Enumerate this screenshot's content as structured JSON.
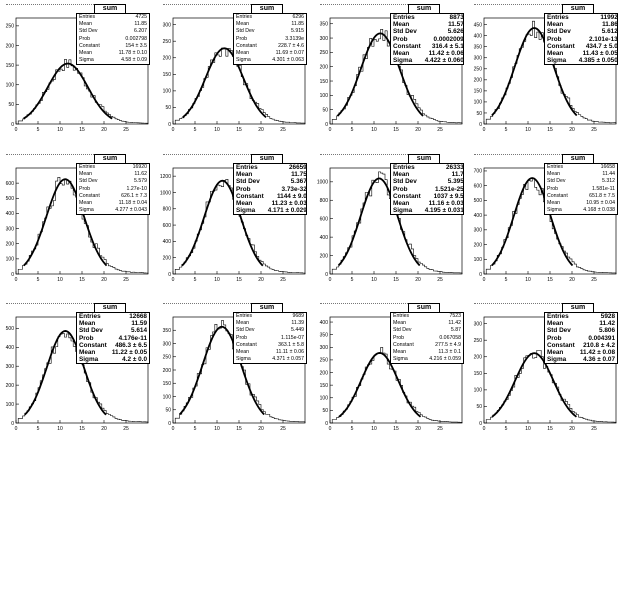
{
  "chart_data": [
    {
      "type": "histogram",
      "name": "sum",
      "xlim": [
        0,
        30
      ],
      "ylim": [
        0,
        270
      ],
      "yticks": [
        0,
        50,
        100,
        150,
        200,
        250
      ],
      "xticks": [
        0,
        5,
        10,
        15,
        20,
        25
      ],
      "stats": [
        {
          "k": "Entries",
          "v": "4725"
        },
        {
          "k": "Mean",
          "v": "11.85"
        },
        {
          "k": "Std Dev",
          "v": "6.207"
        },
        {
          "k": "Prob",
          "v": "0.002798"
        },
        {
          "k": "Constant",
          "v": "154 ± 3.5"
        },
        {
          "k": "Mean",
          "v": "11.78 ± 0.10"
        },
        {
          "k": "Sigma",
          "v": "4.58 ± 0.09"
        }
      ],
      "fit": {
        "constant": 154,
        "mean": 11.78,
        "sigma": 4.58
      }
    },
    {
      "type": "histogram",
      "name": "sum",
      "xlim": [
        0,
        30
      ],
      "ylim": [
        0,
        320
      ],
      "yticks": [
        0,
        50,
        100,
        150,
        200,
        250,
        300
      ],
      "xticks": [
        0,
        5,
        10,
        15,
        20,
        25
      ],
      "stats": [
        {
          "k": "Entries",
          "v": "6296"
        },
        {
          "k": "Mean",
          "v": "11.85"
        },
        {
          "k": "Std Dev",
          "v": "5.915"
        },
        {
          "k": "Prob",
          "v": "3.3139e"
        },
        {
          "k": "Constant",
          "v": "228.7 ± 4.6"
        },
        {
          "k": "Mean",
          "v": "11.69 ± 0.07"
        },
        {
          "k": "Sigma",
          "v": "4.301 ± 0.063"
        }
      ],
      "fit": {
        "constant": 228.7,
        "mean": 11.69,
        "sigma": 4.301
      }
    },
    {
      "type": "histogram",
      "name": "sum",
      "xlim": [
        0,
        30
      ],
      "ylim": [
        0,
        370
      ],
      "yticks": [
        0,
        50,
        100,
        150,
        200,
        250,
        300,
        350
      ],
      "xticks": [
        0,
        5,
        10,
        15,
        20,
        25
      ],
      "stats": [
        {
          "k": "Entries",
          "v": "8873"
        },
        {
          "k": "Mean",
          "v": "11.57"
        },
        {
          "k": "Std Dev",
          "v": "5.626"
        },
        {
          "k": "Prob",
          "v": "0.0002009"
        },
        {
          "k": "Constant",
          "v": "316.4 ± 5.1"
        },
        {
          "k": "Mean",
          "v": "11.42 ± 0.06"
        },
        {
          "k": "Sigma",
          "v": "4.422 ± 0.060"
        }
      ],
      "fit": {
        "constant": 316.4,
        "mean": 11.42,
        "sigma": 4.422
      }
    },
    {
      "type": "histogram",
      "name": "sum",
      "xlim": [
        0,
        30
      ],
      "ylim": [
        0,
        480
      ],
      "yticks": [
        0,
        50,
        100,
        150,
        200,
        250,
        300,
        350,
        400,
        450
      ],
      "xticks": [
        0,
        5,
        10,
        15,
        20,
        25
      ],
      "stats": [
        {
          "k": "Entries",
          "v": "11992"
        },
        {
          "k": "Mean",
          "v": "11.86"
        },
        {
          "k": "Std Dev",
          "v": "5.612"
        },
        {
          "k": "Prob",
          "v": "2.101e-13"
        },
        {
          "k": "Constant",
          "v": "434.7 ± 5.0"
        },
        {
          "k": "Mean",
          "v": "11.43 ± 0.05"
        },
        {
          "k": "Sigma",
          "v": "4.385 ± 0.050"
        }
      ],
      "fit": {
        "constant": 434.7,
        "mean": 11.43,
        "sigma": 4.385
      }
    },
    {
      "type": "histogram",
      "name": "sum",
      "xlim": [
        0,
        30
      ],
      "ylim": [
        0,
        700
      ],
      "yticks": [
        0,
        100,
        200,
        300,
        400,
        500,
        600
      ],
      "xticks": [
        0,
        5,
        10,
        15,
        20,
        25
      ],
      "stats": [
        {
          "k": "Entries",
          "v": "16920"
        },
        {
          "k": "Mean",
          "v": "11.62"
        },
        {
          "k": "Std Dev",
          "v": "5.579"
        },
        {
          "k": "Prob",
          "v": "1.27e-10"
        },
        {
          "k": "Constant",
          "v": "626.1 ± 7.3"
        },
        {
          "k": "Mean",
          "v": "11.18 ± 0.04"
        },
        {
          "k": "Sigma",
          "v": "4.277 ± 0.043"
        }
      ],
      "fit": {
        "constant": 626.1,
        "mean": 11.18,
        "sigma": 4.277
      }
    },
    {
      "type": "histogram",
      "name": "sum",
      "xlim": [
        0,
        30
      ],
      "ylim": [
        0,
        1300
      ],
      "yticks": [
        0,
        200,
        400,
        600,
        800,
        1000,
        1200
      ],
      "xticks": [
        0,
        5,
        10,
        15,
        20,
        25
      ],
      "stats": [
        {
          "k": "Entries",
          "v": "26659"
        },
        {
          "k": "Mean",
          "v": "11.75"
        },
        {
          "k": "Std Dev",
          "v": "5.367"
        },
        {
          "k": "Prob",
          "v": "3.73e-32"
        },
        {
          "k": "Constant",
          "v": "1144 ± 9.0"
        },
        {
          "k": "Mean",
          "v": "11.23 ± 0.03"
        },
        {
          "k": "Sigma",
          "v": "4.171 ± 0.029"
        }
      ],
      "fit": {
        "constant": 1144,
        "mean": 11.23,
        "sigma": 4.171
      }
    },
    {
      "type": "histogram",
      "name": "sum",
      "xlim": [
        0,
        30
      ],
      "ylim": [
        0,
        1150
      ],
      "yticks": [
        0,
        200,
        400,
        600,
        800,
        1000
      ],
      "xticks": [
        0,
        5,
        10,
        15,
        20,
        25
      ],
      "stats": [
        {
          "k": "Entries",
          "v": "26333"
        },
        {
          "k": "Mean",
          "v": "11.7"
        },
        {
          "k": "Std Dev",
          "v": "5.395"
        },
        {
          "k": "Prob",
          "v": "1.521e-25"
        },
        {
          "k": "Constant",
          "v": "1037 ± 9.5"
        },
        {
          "k": "Mean",
          "v": "11.16 ± 0.03"
        },
        {
          "k": "Sigma",
          "v": "4.195 ± 0.031"
        }
      ],
      "fit": {
        "constant": 1037,
        "mean": 11.16,
        "sigma": 4.195
      }
    },
    {
      "type": "histogram",
      "name": "sum",
      "xlim": [
        0,
        30
      ],
      "ylim": [
        0,
        720
      ],
      "yticks": [
        0,
        100,
        200,
        300,
        400,
        500,
        600,
        700
      ],
      "xticks": [
        0,
        5,
        10,
        15,
        20,
        25
      ],
      "stats": [
        {
          "k": "Entries",
          "v": "16658"
        },
        {
          "k": "Mean",
          "v": "11.44"
        },
        {
          "k": "Std Dev",
          "v": "5.312"
        },
        {
          "k": "Prob",
          "v": "1.581e-11"
        },
        {
          "k": "Constant",
          "v": "651.8 ± 7.5"
        },
        {
          "k": "Mean",
          "v": "10.95 ± 0.04"
        },
        {
          "k": "Sigma",
          "v": "4.168 ± 0.038"
        }
      ],
      "fit": {
        "constant": 651.8,
        "mean": 10.95,
        "sigma": 4.168
      }
    },
    {
      "type": "histogram",
      "name": "sum",
      "xlim": [
        0,
        30
      ],
      "ylim": [
        0,
        560
      ],
      "yticks": [
        0,
        100,
        200,
        300,
        400,
        500
      ],
      "xticks": [
        0,
        5,
        10,
        15,
        20,
        25
      ],
      "stats": [
        {
          "k": "Entries",
          "v": "12668"
        },
        {
          "k": "Mean",
          "v": "11.59"
        },
        {
          "k": "Std Dev",
          "v": "5.614"
        },
        {
          "k": "Prob",
          "v": "4.176e-11"
        },
        {
          "k": "Constant",
          "v": "486.3 ± 6.5"
        },
        {
          "k": "Mean",
          "v": "11.22 ± 0.05"
        },
        {
          "k": "Sigma",
          "v": "4.2 ± 0.0"
        }
      ],
      "fit": {
        "constant": 486.3,
        "mean": 11.22,
        "sigma": 4.2
      }
    },
    {
      "type": "histogram",
      "name": "sum",
      "xlim": [
        0,
        30
      ],
      "ylim": [
        0,
        400
      ],
      "yticks": [
        0,
        50,
        100,
        150,
        200,
        250,
        300,
        350
      ],
      "xticks": [
        0,
        5,
        10,
        15,
        20,
        25
      ],
      "stats": [
        {
          "k": "Entries",
          "v": "9689"
        },
        {
          "k": "Mean",
          "v": "11.39"
        },
        {
          "k": "Std Dev",
          "v": "5.449"
        },
        {
          "k": "Prob",
          "v": "1.115e-07"
        },
        {
          "k": "Constant",
          "v": "363.1 ± 5.8"
        },
        {
          "k": "Mean",
          "v": "11.11 ± 0.06"
        },
        {
          "k": "Sigma",
          "v": "4.371 ± 0.057"
        }
      ],
      "fit": {
        "constant": 363.1,
        "mean": 11.11,
        "sigma": 4.371
      }
    },
    {
      "type": "histogram",
      "name": "sum",
      "xlim": [
        0,
        30
      ],
      "ylim": [
        0,
        420
      ],
      "yticks": [
        0,
        50,
        100,
        150,
        200,
        250,
        300,
        350,
        400
      ],
      "xticks": [
        0,
        5,
        10,
        15,
        20,
        25
      ],
      "stats": [
        {
          "k": "Entries",
          "v": "7523"
        },
        {
          "k": "Mean",
          "v": "11.42"
        },
        {
          "k": "Std Dev",
          "v": "5.87"
        },
        {
          "k": "Prob",
          "v": "0.067058"
        },
        {
          "k": "Constant",
          "v": "277.5 ± 4.9"
        },
        {
          "k": "Mean",
          "v": "11.3 ± 0.1"
        },
        {
          "k": "Sigma",
          "v": "4.216 ± 0.059"
        }
      ],
      "fit": {
        "constant": 277.5,
        "mean": 11.3,
        "sigma": 4.216
      }
    },
    {
      "type": "histogram",
      "name": "sum",
      "xlim": [
        0,
        30
      ],
      "ylim": [
        0,
        320
      ],
      "yticks": [
        0,
        50,
        100,
        150,
        200,
        250,
        300
      ],
      "xticks": [
        0,
        5,
        10,
        15,
        20,
        25
      ],
      "stats": [
        {
          "k": "Entries",
          "v": "5928"
        },
        {
          "k": "Mean",
          "v": "11.42"
        },
        {
          "k": "Std Dev",
          "v": "5.806"
        },
        {
          "k": "Prob",
          "v": "0.004391"
        },
        {
          "k": "Constant",
          "v": "210.8 ± 4.2"
        },
        {
          "k": "Mean",
          "v": "11.42 ± 0.08"
        },
        {
          "k": "Sigma",
          "v": "4.36 ± 0.07"
        }
      ],
      "fit": {
        "constant": 210.8,
        "mean": 11.42,
        "sigma": 4.36
      }
    }
  ]
}
